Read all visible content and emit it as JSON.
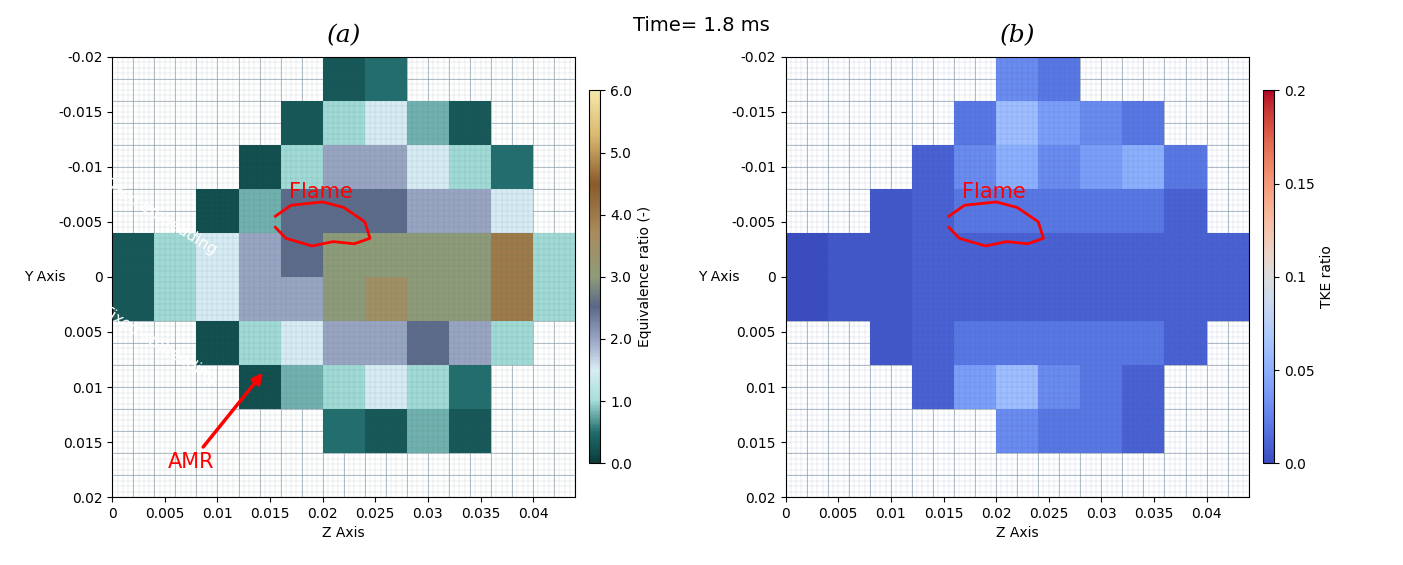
{
  "title": "Time= 1.8 ms",
  "chart_data": [
    {
      "type": "heatmap",
      "title": "(a)",
      "x_label": "Z Axis",
      "y_label": "Y Axis",
      "xlim": [
        0,
        0.044
      ],
      "ylim": [
        0.02,
        -0.02
      ],
      "xticks": [
        0,
        0.005,
        0.01,
        0.015,
        0.02,
        0.025,
        0.03,
        0.035,
        0.04
      ],
      "yticks": [
        -0.02,
        -0.015,
        -0.01,
        -0.005,
        0,
        0.005,
        0.01,
        0.015,
        0.02
      ],
      "x_edges": [
        0,
        0.004,
        0.008,
        0.012,
        0.016,
        0.02,
        0.024,
        0.028,
        0.032,
        0.036,
        0.04,
        0.044
      ],
      "y_edges": [
        -0.02,
        -0.016,
        -0.012,
        -0.008,
        -0.004,
        0,
        0.004,
        0.008,
        0.012,
        0.016,
        0.02
      ],
      "cells": [
        [
          null,
          null,
          null,
          null,
          null,
          0.3,
          0.5,
          null,
          null,
          null,
          null
        ],
        [
          null,
          null,
          null,
          null,
          0.3,
          1.0,
          1.5,
          0.8,
          0.3,
          null,
          null
        ],
        [
          null,
          null,
          null,
          0.2,
          1.0,
          2.0,
          2.0,
          1.5,
          1.0,
          0.5,
          null
        ],
        [
          null,
          null,
          0.2,
          0.8,
          2.5,
          2.5,
          2.5,
          2.0,
          2.0,
          1.5,
          null
        ],
        [
          0.3,
          1.0,
          1.5,
          2.0,
          2.5,
          3.0,
          3.0,
          3.0,
          3.0,
          4.0,
          1.0
        ],
        [
          0.3,
          1.0,
          1.5,
          2.0,
          2.0,
          3.0,
          3.5,
          3.0,
          3.0,
          4.0,
          1.0
        ],
        [
          null,
          null,
          0.2,
          1.0,
          1.5,
          2.0,
          2.0,
          2.5,
          2.0,
          1.0,
          null
        ],
        [
          null,
          null,
          null,
          0.2,
          0.8,
          1.0,
          1.5,
          1.0,
          0.5,
          null,
          null
        ],
        [
          null,
          null,
          null,
          null,
          null,
          0.5,
          0.3,
          0.8,
          0.3,
          null,
          null
        ],
        [
          null,
          null,
          null,
          null,
          null,
          null,
          null,
          null,
          null,
          null,
          null
        ]
      ],
      "colorbar": {
        "label": "Equivalence ratio (-)",
        "range": [
          0,
          6
        ],
        "ticks": [
          {
            "value": 0,
            "label": "0.0"
          },
          {
            "value": 1,
            "label": "1.0"
          },
          {
            "value": 2,
            "label": "2.0"
          },
          {
            "value": 3,
            "label": "3.0"
          },
          {
            "value": 4,
            "label": "4.0"
          },
          {
            "value": 5,
            "label": "5.0"
          },
          {
            "value": 6,
            "label": "6.0"
          }
        ]
      },
      "flame_contour": {
        "z": [
          0.0155,
          0.017,
          0.02,
          0.022,
          0.024,
          0.0245,
          0.023,
          0.021,
          0.019,
          0.0165,
          0.0155
        ],
        "y": [
          -0.0055,
          -0.0065,
          -0.0068,
          -0.0063,
          -0.005,
          -0.0035,
          -0.003,
          -0.0032,
          -0.0028,
          -0.0035,
          -0.0045
        ]
      },
      "annotations": [
        "Flame",
        "Fixed embedding",
        "Fixed embedding",
        "AMR"
      ]
    },
    {
      "type": "heatmap",
      "title": "(b)",
      "x_label": "Z Axis",
      "y_label": "Y Axis",
      "xlim": [
        0,
        0.044
      ],
      "ylim": [
        0.02,
        -0.02
      ],
      "xticks": [
        0,
        0.005,
        0.01,
        0.015,
        0.02,
        0.025,
        0.03,
        0.035,
        0.04
      ],
      "yticks": [
        -0.02,
        -0.015,
        -0.01,
        -0.005,
        0,
        0.005,
        0.01,
        0.015,
        0.02
      ],
      "x_edges": [
        0,
        0.004,
        0.008,
        0.012,
        0.016,
        0.02,
        0.024,
        0.028,
        0.032,
        0.036,
        0.04,
        0.044
      ],
      "y_edges": [
        -0.02,
        -0.016,
        -0.012,
        -0.008,
        -0.004,
        0,
        0.004,
        0.008,
        0.012,
        0.016,
        0.02
      ],
      "cells": [
        [
          null,
          null,
          null,
          null,
          null,
          0.03,
          0.02,
          null,
          null,
          null,
          null
        ],
        [
          null,
          null,
          null,
          null,
          0.02,
          0.06,
          0.04,
          0.03,
          0.02,
          null,
          null
        ],
        [
          null,
          null,
          null,
          0.01,
          0.03,
          0.05,
          0.03,
          0.04,
          0.05,
          0.02,
          null
        ],
        [
          null,
          null,
          0.005,
          0.01,
          0.02,
          0.02,
          0.02,
          0.02,
          0.02,
          0.01,
          null
        ],
        [
          0.0,
          0.005,
          0.005,
          0.01,
          0.01,
          0.01,
          0.01,
          0.01,
          0.01,
          0.01,
          0.01
        ],
        [
          0.0,
          0.005,
          0.005,
          0.01,
          0.01,
          0.01,
          0.01,
          0.01,
          0.01,
          0.01,
          0.01
        ],
        [
          null,
          null,
          0.005,
          0.01,
          0.02,
          0.02,
          0.02,
          0.02,
          0.02,
          0.01,
          null
        ],
        [
          null,
          null,
          null,
          0.01,
          0.04,
          0.06,
          0.03,
          0.02,
          0.01,
          null,
          null
        ],
        [
          null,
          null,
          null,
          null,
          null,
          0.03,
          0.02,
          0.02,
          0.01,
          null,
          null
        ],
        [
          null,
          null,
          null,
          null,
          null,
          null,
          null,
          null,
          null,
          null,
          null
        ]
      ],
      "colorbar": {
        "label": "TKE ratio",
        "range": [
          0,
          0.2
        ],
        "ticks": [
          {
            "value": 0,
            "label": "0.0"
          },
          0.05,
          0.1,
          0.15,
          0.2
        ]
      },
      "flame_contour": {
        "z": [
          0.0155,
          0.017,
          0.02,
          0.022,
          0.024,
          0.0245,
          0.023,
          0.021,
          0.019,
          0.0165,
          0.0155
        ],
        "y": [
          -0.0055,
          -0.0065,
          -0.0068,
          -0.0063,
          -0.005,
          -0.0035,
          -0.003,
          -0.0032,
          -0.0028,
          -0.0035,
          -0.0045
        ]
      },
      "annotations": [
        "Flame"
      ]
    }
  ]
}
